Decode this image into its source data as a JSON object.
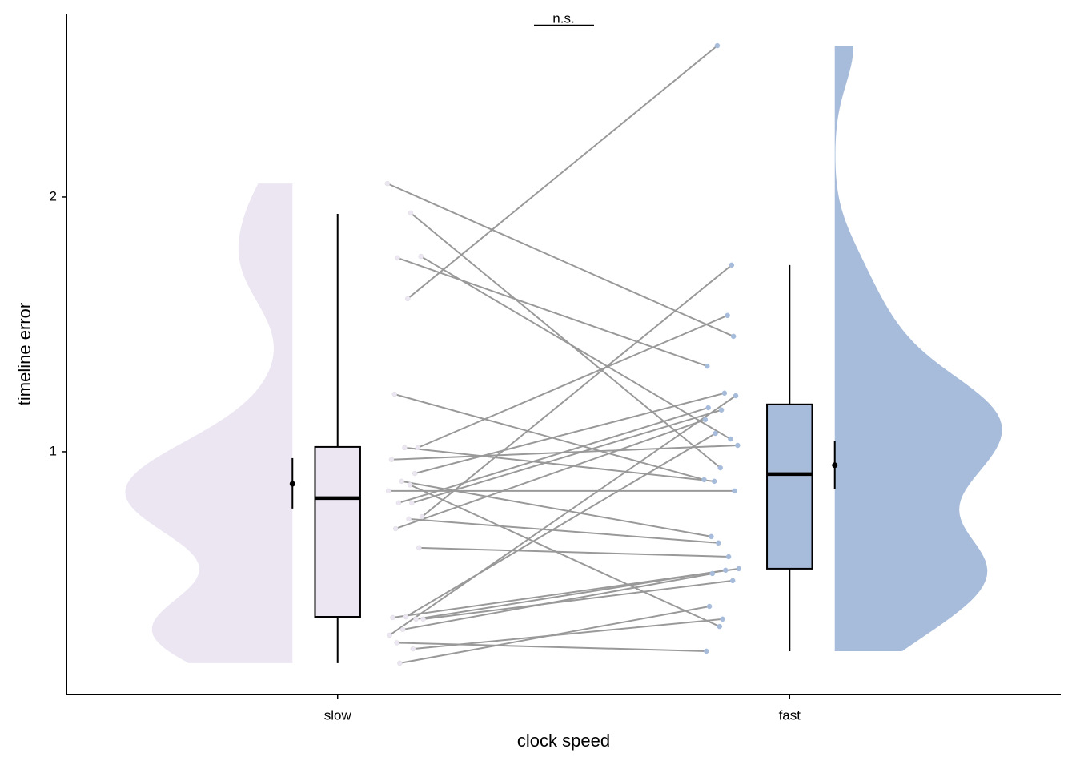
{
  "chart_data": {
    "type": "raincloud",
    "xlabel": "clock speed",
    "ylabel": "timeline error",
    "annotation": "n.s.",
    "categories": [
      "slow",
      "fast"
    ],
    "ylim": [
      0.047,
      2.72
    ],
    "yticks": [
      1,
      2
    ],
    "line_color": "#999999",
    "groups": [
      {
        "color": "#ebe6f2",
        "values": [
          2.053,
          1.937,
          1.761,
          1.767,
          1.601,
          1.226,
          1.016,
          1.016,
          0.969,
          0.915,
          0.884,
          0.846,
          0.799,
          0.799,
          0.745,
          0.736,
          0.698,
          0.623,
          0.352,
          0.349,
          0.343,
          0.302,
          0.28,
          0.226,
          0.17,
          0.343,
          0.87,
          0.25
        ],
        "box": {
          "whisker_low": 0.17,
          "q1": 0.352,
          "median": 0.818,
          "q3": 1.019,
          "whisker_high": 1.934
        },
        "mean": {
          "value": 0.874,
          "low": 0.777,
          "high": 0.975
        }
      },
      {
        "color": "#a7bcdb",
        "values": [
          1.453,
          0.937,
          1.336,
          1.05,
          2.594,
          0.89,
          1.535,
          0.884,
          1.025,
          1.23,
          0.667,
          0.846,
          1.164,
          1.173,
          1.733,
          0.642,
          1.126,
          0.588,
          1.072,
          0.541,
          0.535,
          0.522,
          1.22,
          0.343,
          0.393,
          0.494,
          0.314,
          0.217
        ],
        "box": {
          "whisker_low": 0.217,
          "q1": 0.541,
          "median": 0.912,
          "q3": 1.186,
          "whisker_high": 1.733
        },
        "mean": {
          "value": 0.947,
          "low": 0.852,
          "high": 1.041
        }
      }
    ]
  }
}
